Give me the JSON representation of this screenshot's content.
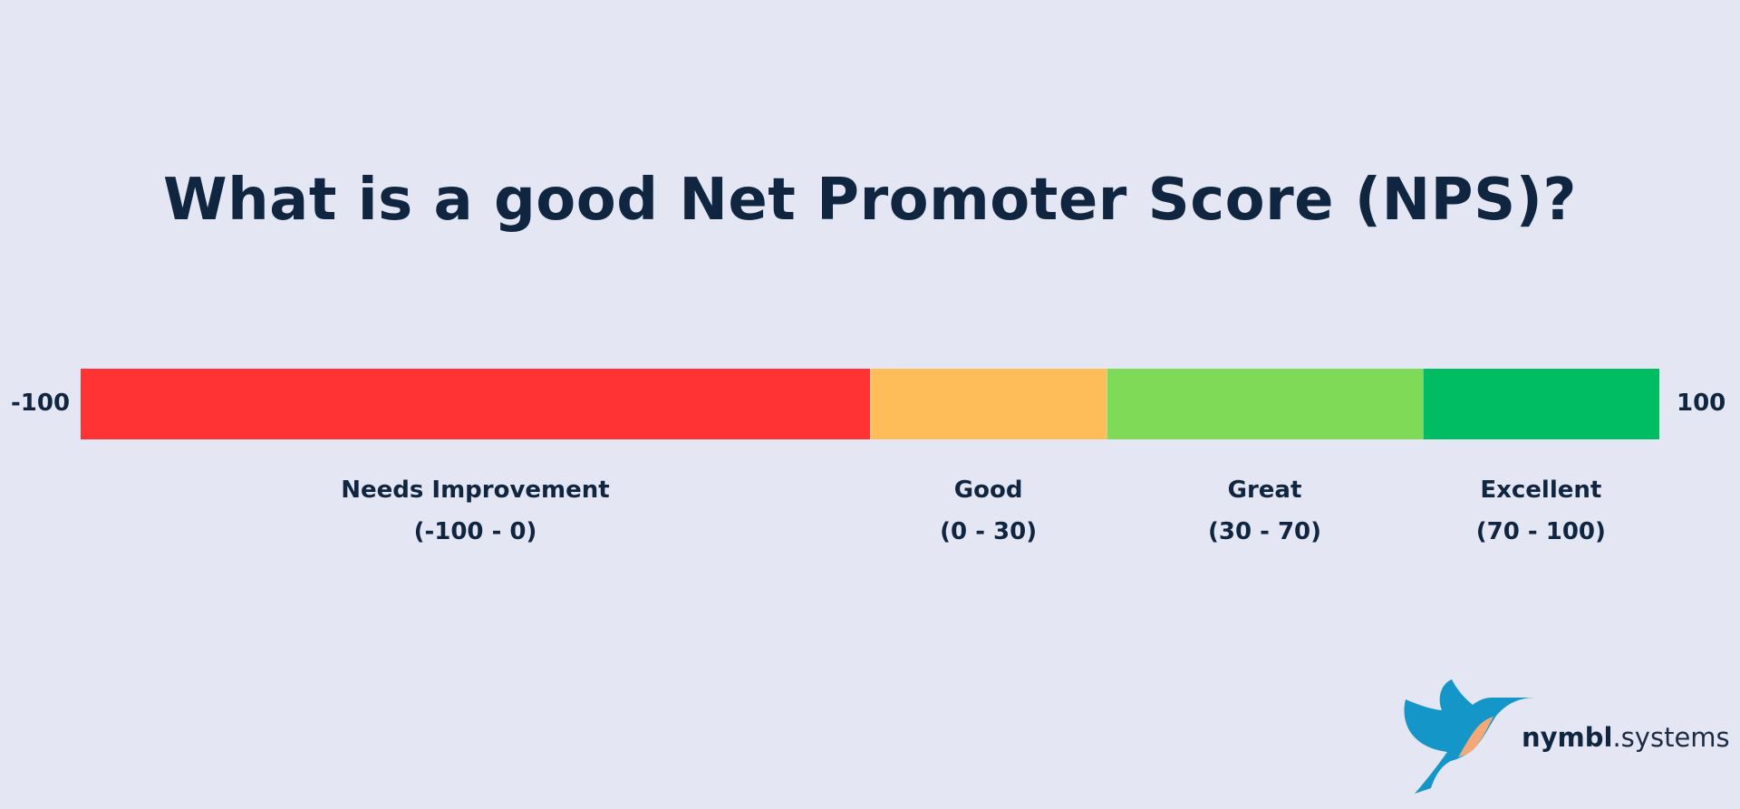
{
  "title": "What is a good Net Promoter Score (NPS)?",
  "chart_data": {
    "type": "bar",
    "orientation": "horizontal-stacked-scale",
    "title": "What is a good Net Promoter Score (NPS)?",
    "xlim": [
      -100,
      100
    ],
    "axis_labels": {
      "min": "-100",
      "max": "100"
    },
    "categories": [
      "Needs Improvement",
      "Good",
      "Great",
      "Excellent"
    ],
    "segments": [
      {
        "name": "Needs Improvement",
        "range_label": "(-100 - 0)",
        "start": -100,
        "end": 0,
        "color": "#ff3334"
      },
      {
        "name": "Good",
        "range_label": "(0 - 30)",
        "start": 0,
        "end": 30,
        "color": "#ffbd5a"
      },
      {
        "name": "Great",
        "range_label": "(30 - 70)",
        "start": 30,
        "end": 70,
        "color": "#7fda58"
      },
      {
        "name": "Excellent",
        "range_label": "(70 - 100)",
        "start": 70,
        "end": 100,
        "color": "#00bd63"
      }
    ],
    "grid": false,
    "legend": "none"
  },
  "logo": {
    "brand": "nymbl",
    "dot_suffix": ".systems",
    "icon": "hummingbird-icon",
    "colors": {
      "bird": "#1497c8",
      "wing": "#f2a877",
      "text": "#0f2540"
    }
  },
  "colors": {
    "background": "#e4e6f3",
    "text": "#0f2540"
  }
}
